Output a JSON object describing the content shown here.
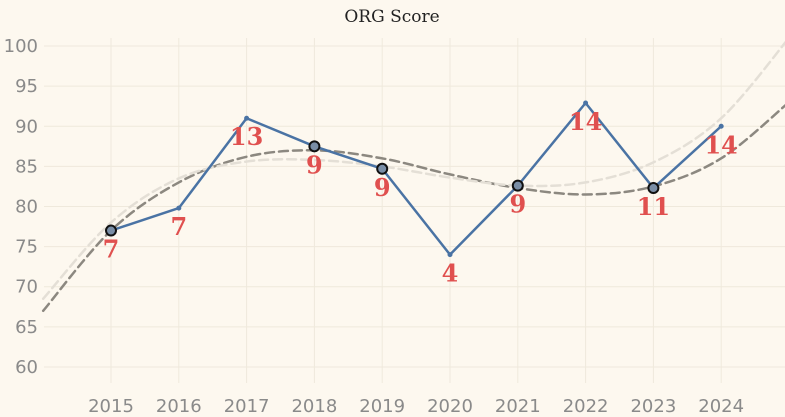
{
  "chart_data": {
    "type": "line",
    "title": "ORG Score",
    "xlabel": "",
    "ylabel": "",
    "categories": [
      "2015",
      "2016",
      "2017",
      "2018",
      "2019",
      "2020",
      "2021",
      "2022",
      "2023",
      "2024"
    ],
    "ylim": [
      58,
      101
    ],
    "yticks": [
      60,
      65,
      70,
      75,
      80,
      85,
      90,
      95,
      100
    ],
    "grid": true,
    "series": [
      {
        "name": "ORG Score",
        "values": [
          77.0,
          79.8,
          91.0,
          87.5,
          84.7,
          74.0,
          82.6,
          92.9,
          82.3,
          90.0
        ],
        "color": "#4a73a4",
        "highlighted_points": [
          "2015",
          "2018",
          "2019",
          "2021",
          "2023"
        ],
        "labels": [
          "7",
          "7",
          "13",
          "9",
          "9",
          "4",
          "9",
          "14",
          "11",
          "14"
        ],
        "label_color": "#e0504f"
      }
    ],
    "trend_lines": [
      {
        "name": "trend-dark",
        "style": "dashed",
        "color": "#8c8880",
        "points": [
          [
            2014.0,
            67.0
          ],
          [
            2015.0,
            77.0
          ],
          [
            2016.0,
            83.0
          ],
          [
            2017.0,
            86.2
          ],
          [
            2018.0,
            87.0
          ],
          [
            2019.0,
            86.0
          ],
          [
            2020.0,
            84.0
          ],
          [
            2021.0,
            82.3
          ],
          [
            2022.0,
            81.5
          ],
          [
            2023.0,
            82.5
          ],
          [
            2024.0,
            86.0
          ],
          [
            2025.0,
            93.0
          ]
        ]
      },
      {
        "name": "trend-light",
        "style": "dashed",
        "color": "#e4dfd6",
        "points": [
          [
            2014.0,
            68.5
          ],
          [
            2015.0,
            78.0
          ],
          [
            2016.0,
            83.5
          ],
          [
            2017.0,
            85.6
          ],
          [
            2018.0,
            85.8
          ],
          [
            2019.0,
            85.0
          ],
          [
            2020.0,
            83.6
          ],
          [
            2021.0,
            82.6
          ],
          [
            2022.0,
            83.0
          ],
          [
            2023.0,
            85.5
          ],
          [
            2024.0,
            91.0
          ],
          [
            2025.0,
            101.0
          ]
        ]
      }
    ]
  }
}
